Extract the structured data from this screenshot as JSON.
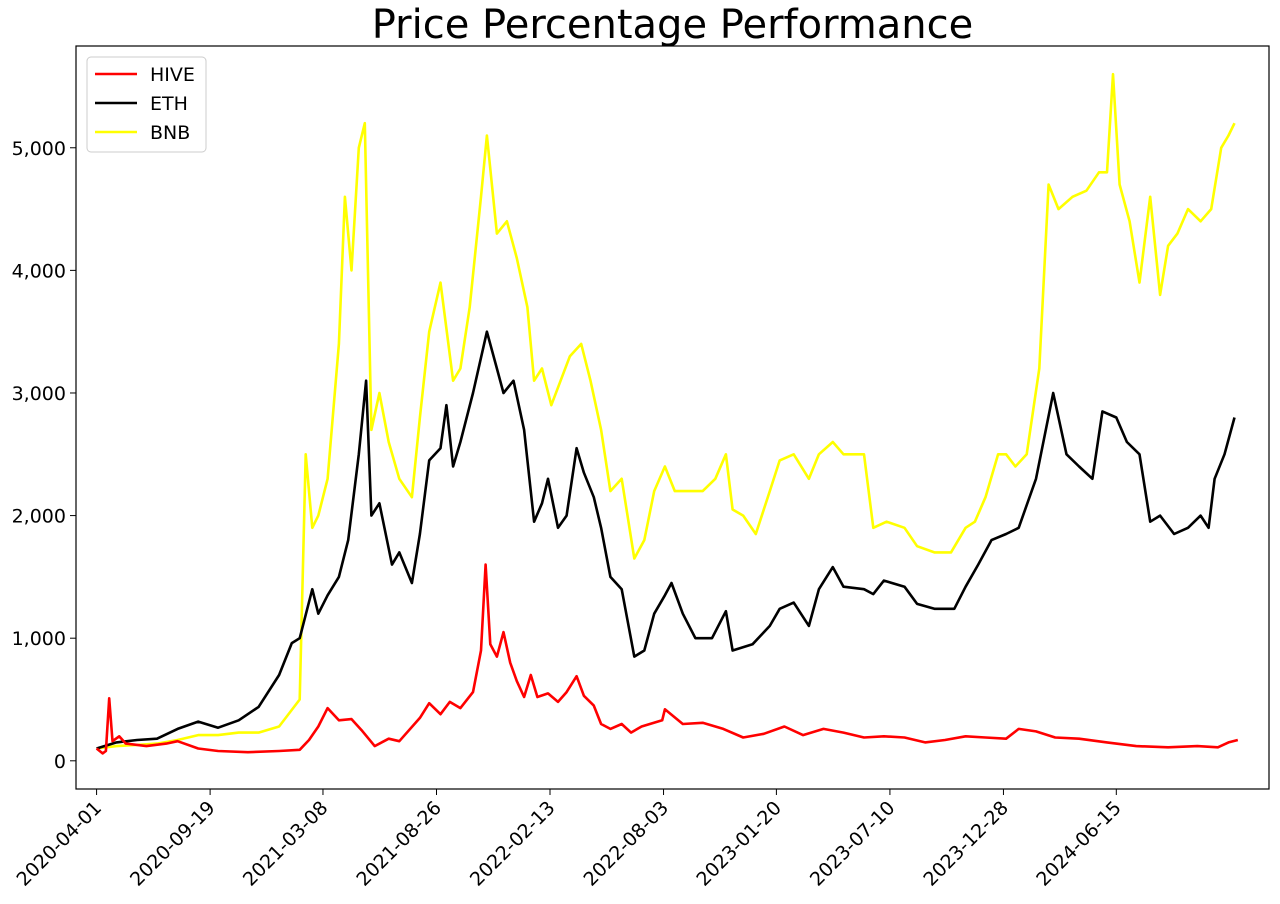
{
  "chart_data": {
    "type": "line",
    "title": "Price Percentage Performance",
    "xlabel": "",
    "ylabel": "",
    "x_ticks": [
      "2020-04-01",
      "2020-09-19",
      "2021-03-08",
      "2021-08-26",
      "2022-02-13",
      "2022-08-03",
      "2023-01-20",
      "2023-07-10",
      "2023-12-28",
      "2024-06-15"
    ],
    "x_range": [
      "2020-03-01",
      "2025-01-31"
    ],
    "y_ticks": [
      0,
      1000,
      2000,
      3000,
      4000,
      5000
    ],
    "y_tick_labels": [
      "0",
      "1,000",
      "2,000",
      "3,000",
      "4,000",
      "5,000"
    ],
    "ylim": [
      -230,
      5830
    ],
    "grid": false,
    "legend_position": "top-left",
    "series": [
      {
        "name": "HIVE",
        "color": "#ff0000",
        "points": [
          [
            "2020-04-01",
            100
          ],
          [
            "2020-04-10",
            60
          ],
          [
            "2020-04-15",
            80
          ],
          [
            "2020-04-20",
            510
          ],
          [
            "2020-04-25",
            160
          ],
          [
            "2020-05-05",
            200
          ],
          [
            "2020-05-15",
            140
          ],
          [
            "2020-06-15",
            120
          ],
          [
            "2020-07-15",
            140
          ],
          [
            "2020-08-01",
            160
          ],
          [
            "2020-09-01",
            100
          ],
          [
            "2020-10-01",
            80
          ],
          [
            "2020-11-15",
            70
          ],
          [
            "2021-01-01",
            80
          ],
          [
            "2021-02-01",
            90
          ],
          [
            "2021-02-15",
            170
          ],
          [
            "2021-03-01",
            280
          ],
          [
            "2021-03-15",
            430
          ],
          [
            "2021-04-01",
            330
          ],
          [
            "2021-04-20",
            340
          ],
          [
            "2021-05-05",
            250
          ],
          [
            "2021-05-25",
            120
          ],
          [
            "2021-06-15",
            180
          ],
          [
            "2021-07-01",
            160
          ],
          [
            "2021-08-01",
            350
          ],
          [
            "2021-08-15",
            470
          ],
          [
            "2021-09-01",
            380
          ],
          [
            "2021-09-15",
            480
          ],
          [
            "2021-10-01",
            430
          ],
          [
            "2021-10-20",
            560
          ],
          [
            "2021-11-01",
            900
          ],
          [
            "2021-11-08",
            1600
          ],
          [
            "2021-11-15",
            950
          ],
          [
            "2021-11-25",
            850
          ],
          [
            "2021-12-05",
            1050
          ],
          [
            "2021-12-15",
            800
          ],
          [
            "2021-12-25",
            650
          ],
          [
            "2022-01-05",
            520
          ],
          [
            "2022-01-15",
            700
          ],
          [
            "2022-01-25",
            520
          ],
          [
            "2022-02-10",
            550
          ],
          [
            "2022-02-25",
            480
          ],
          [
            "2022-03-10",
            560
          ],
          [
            "2022-03-25",
            690
          ],
          [
            "2022-04-05",
            530
          ],
          [
            "2022-04-20",
            450
          ],
          [
            "2022-05-01",
            300
          ],
          [
            "2022-05-15",
            260
          ],
          [
            "2022-06-01",
            300
          ],
          [
            "2022-06-15",
            230
          ],
          [
            "2022-07-01",
            280
          ],
          [
            "2022-08-01",
            330
          ],
          [
            "2022-08-05",
            420
          ],
          [
            "2022-09-01",
            300
          ],
          [
            "2022-10-01",
            310
          ],
          [
            "2022-11-01",
            260
          ],
          [
            "2022-12-01",
            190
          ],
          [
            "2023-01-01",
            220
          ],
          [
            "2023-02-01",
            280
          ],
          [
            "2023-03-01",
            210
          ],
          [
            "2023-04-01",
            260
          ],
          [
            "2023-05-01",
            230
          ],
          [
            "2023-06-01",
            190
          ],
          [
            "2023-07-01",
            200
          ],
          [
            "2023-08-01",
            190
          ],
          [
            "2023-09-01",
            150
          ],
          [
            "2023-10-01",
            170
          ],
          [
            "2023-11-01",
            200
          ],
          [
            "2023-12-01",
            190
          ],
          [
            "2024-01-01",
            180
          ],
          [
            "2024-01-20",
            260
          ],
          [
            "2024-02-15",
            240
          ],
          [
            "2024-03-15",
            190
          ],
          [
            "2024-04-20",
            180
          ],
          [
            "2024-06-01",
            150
          ],
          [
            "2024-07-15",
            120
          ],
          [
            "2024-09-01",
            110
          ],
          [
            "2024-10-15",
            120
          ],
          [
            "2024-11-15",
            110
          ],
          [
            "2024-12-01",
            150
          ],
          [
            "2024-12-15",
            170
          ]
        ]
      },
      {
        "name": "ETH",
        "color": "#000000",
        "points": [
          [
            "2020-04-01",
            100
          ],
          [
            "2020-05-01",
            150
          ],
          [
            "2020-06-01",
            170
          ],
          [
            "2020-07-01",
            180
          ],
          [
            "2020-08-01",
            260
          ],
          [
            "2020-09-01",
            320
          ],
          [
            "2020-10-01",
            270
          ],
          [
            "2020-11-01",
            330
          ],
          [
            "2020-12-01",
            440
          ],
          [
            "2021-01-01",
            700
          ],
          [
            "2021-01-20",
            960
          ],
          [
            "2021-02-01",
            1000
          ],
          [
            "2021-02-20",
            1400
          ],
          [
            "2021-03-01",
            1200
          ],
          [
            "2021-03-15",
            1350
          ],
          [
            "2021-04-01",
            1500
          ],
          [
            "2021-04-15",
            1800
          ],
          [
            "2021-05-01",
            2500
          ],
          [
            "2021-05-12",
            3100
          ],
          [
            "2021-05-20",
            2000
          ],
          [
            "2021-06-01",
            2100
          ],
          [
            "2021-06-20",
            1600
          ],
          [
            "2021-07-01",
            1700
          ],
          [
            "2021-07-20",
            1450
          ],
          [
            "2021-08-01",
            1850
          ],
          [
            "2021-08-15",
            2450
          ],
          [
            "2021-09-01",
            2550
          ],
          [
            "2021-09-10",
            2900
          ],
          [
            "2021-09-20",
            2400
          ],
          [
            "2021-10-01",
            2600
          ],
          [
            "2021-10-20",
            3000
          ],
          [
            "2021-11-10",
            3500
          ],
          [
            "2021-11-25",
            3200
          ],
          [
            "2021-12-05",
            3000
          ],
          [
            "2021-12-20",
            3100
          ],
          [
            "2022-01-05",
            2700
          ],
          [
            "2022-01-20",
            1950
          ],
          [
            "2022-02-01",
            2100
          ],
          [
            "2022-02-10",
            2300
          ],
          [
            "2022-02-25",
            1900
          ],
          [
            "2022-03-10",
            2000
          ],
          [
            "2022-03-25",
            2550
          ],
          [
            "2022-04-05",
            2350
          ],
          [
            "2022-04-20",
            2150
          ],
          [
            "2022-05-01",
            1900
          ],
          [
            "2022-05-15",
            1500
          ],
          [
            "2022-06-01",
            1400
          ],
          [
            "2022-06-20",
            850
          ],
          [
            "2022-07-05",
            900
          ],
          [
            "2022-07-20",
            1200
          ],
          [
            "2022-08-05",
            1350
          ],
          [
            "2022-08-15",
            1450
          ],
          [
            "2022-09-01",
            1200
          ],
          [
            "2022-09-20",
            1000
          ],
          [
            "2022-10-15",
            1000
          ],
          [
            "2022-11-05",
            1220
          ],
          [
            "2022-11-15",
            900
          ],
          [
            "2022-12-15",
            950
          ],
          [
            "2023-01-10",
            1100
          ],
          [
            "2023-01-25",
            1240
          ],
          [
            "2023-02-15",
            1290
          ],
          [
            "2023-03-10",
            1100
          ],
          [
            "2023-03-25",
            1400
          ],
          [
            "2023-04-15",
            1580
          ],
          [
            "2023-05-01",
            1420
          ],
          [
            "2023-06-01",
            1400
          ],
          [
            "2023-06-15",
            1360
          ],
          [
            "2023-07-01",
            1470
          ],
          [
            "2023-08-01",
            1420
          ],
          [
            "2023-08-20",
            1280
          ],
          [
            "2023-09-15",
            1240
          ],
          [
            "2023-10-15",
            1240
          ],
          [
            "2023-11-01",
            1420
          ],
          [
            "2023-11-20",
            1600
          ],
          [
            "2023-12-10",
            1800
          ],
          [
            "2024-01-01",
            1850
          ],
          [
            "2024-01-20",
            1900
          ],
          [
            "2024-02-15",
            2300
          ],
          [
            "2024-03-12",
            3000
          ],
          [
            "2024-04-01",
            2500
          ],
          [
            "2024-04-20",
            2400
          ],
          [
            "2024-05-10",
            2300
          ],
          [
            "2024-05-25",
            2850
          ],
          [
            "2024-06-15",
            2800
          ],
          [
            "2024-07-01",
            2600
          ],
          [
            "2024-07-20",
            2500
          ],
          [
            "2024-08-05",
            1950
          ],
          [
            "2024-08-20",
            2000
          ],
          [
            "2024-09-10",
            1850
          ],
          [
            "2024-10-01",
            1900
          ],
          [
            "2024-10-20",
            2000
          ],
          [
            "2024-11-01",
            1900
          ],
          [
            "2024-11-10",
            2300
          ],
          [
            "2024-11-25",
            2500
          ],
          [
            "2024-12-10",
            2800
          ]
        ]
      },
      {
        "name": "BNB",
        "color": "#ffff00",
        "points": [
          [
            "2020-04-01",
            100
          ],
          [
            "2020-05-01",
            120
          ],
          [
            "2020-06-01",
            130
          ],
          [
            "2020-07-01",
            140
          ],
          [
            "2020-08-01",
            170
          ],
          [
            "2020-09-01",
            210
          ],
          [
            "2020-10-01",
            210
          ],
          [
            "2020-11-01",
            230
          ],
          [
            "2020-12-01",
            230
          ],
          [
            "2021-01-01",
            280
          ],
          [
            "2021-02-01",
            500
          ],
          [
            "2021-02-10",
            2500
          ],
          [
            "2021-02-20",
            1900
          ],
          [
            "2021-03-01",
            2000
          ],
          [
            "2021-03-15",
            2300
          ],
          [
            "2021-04-01",
            3400
          ],
          [
            "2021-04-10",
            4600
          ],
          [
            "2021-04-20",
            4000
          ],
          [
            "2021-05-01",
            5000
          ],
          [
            "2021-05-10",
            5200
          ],
          [
            "2021-05-20",
            2700
          ],
          [
            "2021-06-01",
            3000
          ],
          [
            "2021-06-15",
            2600
          ],
          [
            "2021-07-01",
            2300
          ],
          [
            "2021-07-20",
            2150
          ],
          [
            "2021-08-01",
            2800
          ],
          [
            "2021-08-15",
            3500
          ],
          [
            "2021-09-01",
            3900
          ],
          [
            "2021-09-20",
            3100
          ],
          [
            "2021-10-01",
            3200
          ],
          [
            "2021-10-15",
            3700
          ],
          [
            "2021-11-01",
            4600
          ],
          [
            "2021-11-10",
            5100
          ],
          [
            "2021-11-25",
            4300
          ],
          [
            "2021-12-10",
            4400
          ],
          [
            "2021-12-25",
            4100
          ],
          [
            "2022-01-10",
            3700
          ],
          [
            "2022-01-20",
            3100
          ],
          [
            "2022-02-01",
            3200
          ],
          [
            "2022-02-15",
            2900
          ],
          [
            "2022-03-01",
            3100
          ],
          [
            "2022-03-15",
            3300
          ],
          [
            "2022-04-01",
            3400
          ],
          [
            "2022-04-15",
            3100
          ],
          [
            "2022-05-01",
            2700
          ],
          [
            "2022-05-15",
            2200
          ],
          [
            "2022-06-01",
            2300
          ],
          [
            "2022-06-20",
            1650
          ],
          [
            "2022-07-05",
            1800
          ],
          [
            "2022-07-20",
            2200
          ],
          [
            "2022-08-05",
            2400
          ],
          [
            "2022-08-20",
            2200
          ],
          [
            "2022-09-10",
            2200
          ],
          [
            "2022-10-01",
            2200
          ],
          [
            "2022-10-20",
            2300
          ],
          [
            "2022-11-05",
            2500
          ],
          [
            "2022-11-15",
            2050
          ],
          [
            "2022-12-01",
            2000
          ],
          [
            "2022-12-20",
            1850
          ],
          [
            "2023-01-10",
            2200
          ],
          [
            "2023-01-25",
            2450
          ],
          [
            "2023-02-15",
            2500
          ],
          [
            "2023-03-10",
            2300
          ],
          [
            "2023-03-25",
            2500
          ],
          [
            "2023-04-15",
            2600
          ],
          [
            "2023-05-01",
            2500
          ],
          [
            "2023-06-01",
            2500
          ],
          [
            "2023-06-15",
            1900
          ],
          [
            "2023-07-05",
            1950
          ],
          [
            "2023-08-01",
            1900
          ],
          [
            "2023-08-20",
            1750
          ],
          [
            "2023-09-15",
            1700
          ],
          [
            "2023-10-10",
            1700
          ],
          [
            "2023-11-01",
            1900
          ],
          [
            "2023-11-15",
            1950
          ],
          [
            "2023-12-01",
            2150
          ],
          [
            "2023-12-20",
            2500
          ],
          [
            "2024-01-01",
            2500
          ],
          [
            "2024-01-15",
            2400
          ],
          [
            "2024-02-01",
            2500
          ],
          [
            "2024-02-20",
            3200
          ],
          [
            "2024-03-05",
            4700
          ],
          [
            "2024-03-20",
            4500
          ],
          [
            "2024-04-10",
            4600
          ],
          [
            "2024-05-01",
            4650
          ],
          [
            "2024-05-20",
            4800
          ],
          [
            "2024-06-01",
            4800
          ],
          [
            "2024-06-10",
            5600
          ],
          [
            "2024-06-20",
            4700
          ],
          [
            "2024-07-05",
            4400
          ],
          [
            "2024-07-20",
            3900
          ],
          [
            "2024-08-05",
            4600
          ],
          [
            "2024-08-20",
            3800
          ],
          [
            "2024-09-01",
            4200
          ],
          [
            "2024-09-15",
            4300
          ],
          [
            "2024-10-01",
            4500
          ],
          [
            "2024-10-20",
            4400
          ],
          [
            "2024-11-05",
            4500
          ],
          [
            "2024-11-20",
            5000
          ],
          [
            "2024-12-01",
            5100
          ],
          [
            "2024-12-10",
            5200
          ]
        ]
      }
    ]
  }
}
